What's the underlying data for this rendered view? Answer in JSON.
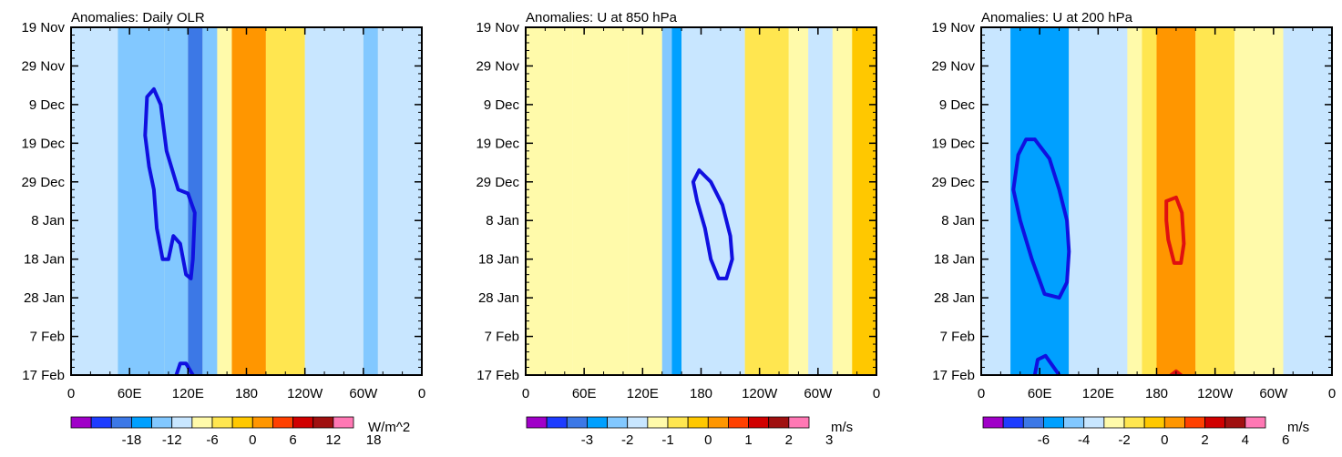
{
  "chart_data": [
    {
      "type": "heatmap",
      "title": "Anomalies: Daily OLR",
      "x_ticks": [
        "0",
        "60E",
        "120E",
        "180",
        "120W",
        "60W",
        "0"
      ],
      "x_range_deg": [
        0,
        360
      ],
      "y_ticks": [
        "19 Nov",
        "29 Nov",
        "9 Dec",
        "19 Dec",
        "29 Dec",
        "8 Jan",
        "18 Jan",
        "28 Jan",
        "7 Feb",
        "17 Feb"
      ],
      "y_range_days": [
        0,
        90
      ],
      "colorbar_labels": [
        "-18",
        "-12",
        "-6",
        "0",
        "6",
        "12",
        "18"
      ],
      "units": "W/m^2",
      "contour_color": "#1010e0",
      "bands": [
        {
          "x0": 0,
          "x1": 48,
          "level": -0.5
        },
        {
          "x0": 48,
          "x1": 96,
          "level": -2
        },
        {
          "x0": 96,
          "x1": 120,
          "level": -1.5
        },
        {
          "x0": 120,
          "x1": 135,
          "level": -4
        },
        {
          "x0": 135,
          "x1": 150,
          "level": -2
        },
        {
          "x0": 150,
          "x1": 165,
          "level": 0.5
        },
        {
          "x0": 165,
          "x1": 200,
          "level": 3
        },
        {
          "x0": 200,
          "x1": 240,
          "level": 1
        },
        {
          "x0": 240,
          "x1": 300,
          "level": -1
        },
        {
          "x0": 300,
          "x1": 315,
          "level": -2
        },
        {
          "x0": 315,
          "x1": 360,
          "level": -1
        }
      ],
      "contours": [
        {
          "color": "#1010e0",
          "points": [
            [
              85,
              16
            ],
            [
              92,
              20
            ],
            [
              98,
              32
            ],
            [
              110,
              42
            ],
            [
              120,
              43
            ],
            [
              127,
              48
            ],
            [
              125,
              60
            ],
            [
              123,
              65
            ],
            [
              118,
              64
            ],
            [
              112,
              56
            ],
            [
              105,
              54
            ],
            [
              100,
              60
            ],
            [
              94,
              60
            ],
            [
              88,
              52
            ],
            [
              85,
              42
            ],
            [
              80,
              36
            ],
            [
              76,
              28
            ],
            [
              78,
              18
            ],
            [
              85,
              16
            ]
          ]
        },
        {
          "color": "#1010e0",
          "points": [
            [
              108,
              90
            ],
            [
              112,
              87
            ],
            [
              118,
              87
            ],
            [
              125,
              90
            ]
          ]
        }
      ]
    },
    {
      "type": "heatmap",
      "title": "Anomalies: U at 850 hPa",
      "x_ticks": [
        "0",
        "60E",
        "120E",
        "180",
        "120W",
        "60W",
        "0"
      ],
      "x_range_deg": [
        0,
        360
      ],
      "y_ticks": [
        "19 Nov",
        "29 Nov",
        "9 Dec",
        "19 Dec",
        "29 Dec",
        "8 Jan",
        "18 Jan",
        "28 Jan",
        "7 Feb",
        "17 Feb"
      ],
      "y_range_days": [
        0,
        90
      ],
      "colorbar_labels": [
        "-3",
        "-2",
        "-1",
        "0",
        "1",
        "2",
        "3"
      ],
      "units": "m/s",
      "contour_color": "#1010e0",
      "bands": [
        {
          "x0": 0,
          "x1": 48,
          "level": 0.5
        },
        {
          "x0": 48,
          "x1": 105,
          "level": 0.3
        },
        {
          "x0": 105,
          "x1": 140,
          "level": 0.2
        },
        {
          "x0": 140,
          "x1": 150,
          "level": -1.5
        },
        {
          "x0": 150,
          "x1": 160,
          "level": -3
        },
        {
          "x0": 160,
          "x1": 225,
          "level": -0.5
        },
        {
          "x0": 225,
          "x1": 270,
          "level": 1.5
        },
        {
          "x0": 270,
          "x1": 290,
          "level": 0.3
        },
        {
          "x0": 290,
          "x1": 315,
          "level": -1
        },
        {
          "x0": 315,
          "x1": 335,
          "level": 0.5
        },
        {
          "x0": 335,
          "x1": 360,
          "level": 2.5
        }
      ],
      "contours": [
        {
          "color": "#1010e0",
          "points": [
            [
              178,
              37
            ],
            [
              190,
              40
            ],
            [
              202,
              46
            ],
            [
              210,
              54
            ],
            [
              212,
              60
            ],
            [
              206,
              65
            ],
            [
              198,
              65
            ],
            [
              190,
              60
            ],
            [
              184,
              52
            ],
            [
              176,
              45
            ],
            [
              172,
              40
            ],
            [
              178,
              37
            ]
          ]
        }
      ]
    },
    {
      "type": "heatmap",
      "title": "Anomalies: U at 200 hPa",
      "x_ticks": [
        "0",
        "60E",
        "120E",
        "180",
        "120W",
        "60W",
        "0"
      ],
      "x_range_deg": [
        0,
        360
      ],
      "y_ticks": [
        "19 Nov",
        "29 Nov",
        "9 Dec",
        "19 Dec",
        "29 Dec",
        "8 Jan",
        "18 Jan",
        "28 Jan",
        "7 Feb",
        "17 Feb"
      ],
      "y_range_days": [
        0,
        90
      ],
      "colorbar_labels": [
        "-6",
        "-4",
        "-2",
        "0",
        "2",
        "4",
        "6"
      ],
      "units": "m/s",
      "contour_color": "#1010e0",
      "bands": [
        {
          "x0": 0,
          "x1": 30,
          "level": -1
        },
        {
          "x0": 30,
          "x1": 90,
          "level": -2.5
        },
        {
          "x0": 90,
          "x1": 150,
          "level": -0.5
        },
        {
          "x0": 150,
          "x1": 165,
          "level": 0.5
        },
        {
          "x0": 165,
          "x1": 180,
          "level": 1.5
        },
        {
          "x0": 180,
          "x1": 220,
          "level": 3
        },
        {
          "x0": 220,
          "x1": 260,
          "level": 1.5
        },
        {
          "x0": 260,
          "x1": 310,
          "level": 0.8
        },
        {
          "x0": 310,
          "x1": 360,
          "level": -1
        }
      ],
      "contours": [
        {
          "color": "#1010e0",
          "points": [
            [
              55,
              29
            ],
            [
              70,
              34
            ],
            [
              80,
              42
            ],
            [
              88,
              50
            ],
            [
              90,
              58
            ],
            [
              88,
              66
            ],
            [
              80,
              70
            ],
            [
              65,
              69
            ],
            [
              52,
              60
            ],
            [
              40,
              50
            ],
            [
              33,
              42
            ],
            [
              38,
              33
            ],
            [
              46,
              29
            ],
            [
              55,
              29
            ]
          ]
        },
        {
          "color": "#1010e0",
          "points": [
            [
              55,
              90
            ],
            [
              58,
              86
            ],
            [
              66,
              85
            ],
            [
              80,
              90
            ]
          ]
        },
        {
          "color": "#e01010",
          "points": [
            [
              190,
              45
            ],
            [
              200,
              44
            ],
            [
              206,
              48
            ],
            [
              208,
              56
            ],
            [
              205,
              61
            ],
            [
              198,
              61
            ],
            [
              192,
              55
            ],
            [
              190,
              50
            ],
            [
              190,
              45
            ]
          ]
        },
        {
          "color": "#e01010",
          "points": [
            [
              195,
              90
            ],
            [
              200,
              89
            ],
            [
              205,
              90
            ]
          ]
        }
      ]
    }
  ]
}
